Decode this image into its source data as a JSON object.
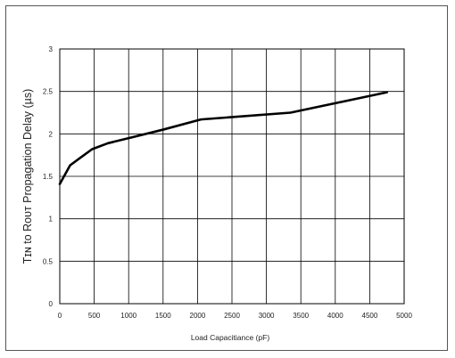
{
  "chart_data": {
    "type": "line",
    "title": "",
    "xlabel": "Load Capacitiance (pF)",
    "ylabel": "Tɪɴ to Rᴏᴜᴛ Propagation Delay (µs)",
    "xlim": [
      0,
      5000
    ],
    "ylim": [
      0,
      3
    ],
    "x_ticks": [
      0,
      500,
      1000,
      1500,
      2000,
      2500,
      3000,
      3500,
      4000,
      4500,
      5000
    ],
    "y_ticks": [
      0,
      0.5,
      1,
      1.5,
      2,
      2.5,
      3
    ],
    "x_tick_labels": [
      "0",
      "500",
      "1000",
      "1500",
      "2000",
      "2500",
      "3000",
      "3500",
      "4000",
      "4500",
      "5000"
    ],
    "y_tick_labels": [
      "0",
      "0.5",
      "1",
      "1.5",
      "2",
      "2.5",
      "3"
    ],
    "grid": true,
    "series": [
      {
        "x": [
          0,
          150,
          300,
          470,
          700,
          1000,
          1500,
          2050,
          3350,
          4750
        ],
        "y": [
          1.41,
          1.63,
          1.72,
          1.82,
          1.89,
          1.95,
          2.05,
          2.17,
          2.25,
          2.49
        ],
        "color": "#000000"
      }
    ]
  }
}
